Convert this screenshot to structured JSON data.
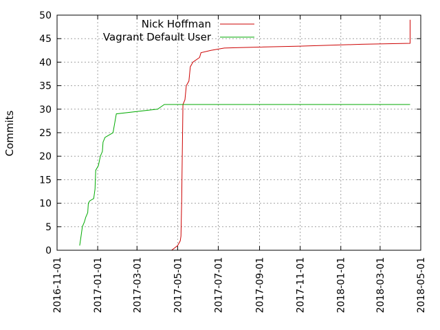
{
  "chart_data": {
    "type": "line",
    "title": "",
    "xlabel": "",
    "ylabel": "Commits",
    "xlim": [
      "2016-11-01",
      "2018-05-01"
    ],
    "ylim": [
      0,
      50
    ],
    "grid": true,
    "legend_position": "top-left",
    "x_ticks": [
      "2016-11-01",
      "2017-01-01",
      "2017-03-01",
      "2017-05-01",
      "2017-07-01",
      "2017-09-01",
      "2017-11-01",
      "2018-01-01",
      "2018-03-01",
      "2018-05-01"
    ],
    "y_ticks": [
      0,
      5,
      10,
      15,
      20,
      25,
      30,
      35,
      40,
      45,
      50
    ],
    "series": [
      {
        "name": "Nick Hoffman",
        "color": "#cc0000",
        "points": [
          [
            "2017-04-22",
            0
          ],
          [
            "2017-05-01",
            1
          ],
          [
            "2017-05-05",
            2
          ],
          [
            "2017-05-06",
            3
          ],
          [
            "2017-05-07",
            10
          ],
          [
            "2017-05-08",
            20
          ],
          [
            "2017-05-09",
            31
          ],
          [
            "2017-05-12",
            32
          ],
          [
            "2017-05-14",
            35
          ],
          [
            "2017-05-18",
            36
          ],
          [
            "2017-05-20",
            39
          ],
          [
            "2017-05-24",
            40
          ],
          [
            "2017-06-03",
            41
          ],
          [
            "2017-06-05",
            42
          ],
          [
            "2017-06-20",
            42.5
          ],
          [
            "2017-07-10",
            43
          ],
          [
            "2017-08-01",
            43.1
          ],
          [
            "2017-11-01",
            43.4
          ],
          [
            "2018-02-01",
            43.8
          ],
          [
            "2018-04-15",
            44
          ],
          [
            "2018-04-15",
            49
          ]
        ]
      },
      {
        "name": "Vagrant Default User",
        "color": "#00aa00",
        "points": [
          [
            "2016-12-05",
            1
          ],
          [
            "2016-12-07",
            3
          ],
          [
            "2016-12-09",
            5
          ],
          [
            "2016-12-12",
            6
          ],
          [
            "2016-12-14",
            7
          ],
          [
            "2016-12-17",
            8
          ],
          [
            "2016-12-18",
            10
          ],
          [
            "2016-12-20",
            10.5
          ],
          [
            "2016-12-26",
            11
          ],
          [
            "2016-12-28",
            13
          ],
          [
            "2016-12-29",
            17
          ],
          [
            "2017-01-02",
            18
          ],
          [
            "2017-01-05",
            20
          ],
          [
            "2017-01-08",
            21
          ],
          [
            "2017-01-09",
            23
          ],
          [
            "2017-01-12",
            24
          ],
          [
            "2017-01-18",
            24.5
          ],
          [
            "2017-01-24",
            25
          ],
          [
            "2017-01-29",
            29
          ],
          [
            "2017-04-01",
            30
          ],
          [
            "2017-04-11",
            31
          ],
          [
            "2018-04-15",
            31
          ]
        ]
      }
    ]
  }
}
